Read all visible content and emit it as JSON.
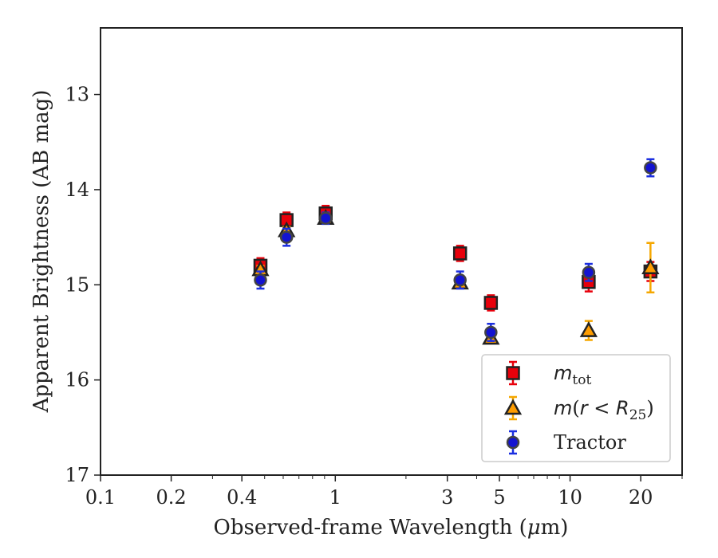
{
  "chart_data": {
    "type": "scatter",
    "xlabel": "Observed-frame Wavelength (μm)",
    "ylabel": "Apparent Brightness (AB mag)",
    "x_scale": "log",
    "xlim": [
      0.1,
      30
    ],
    "ylim": [
      17,
      12.3
    ],
    "y_inverted": true,
    "x_ticks": [
      0.1,
      0.2,
      0.4,
      1,
      3,
      5,
      10,
      20
    ],
    "x_tick_labels": [
      "0.1",
      "0.2",
      "0.4",
      "1",
      "3",
      "5",
      "10",
      "20"
    ],
    "y_ticks": [
      13,
      14,
      15,
      16,
      17
    ],
    "y_tick_labels": [
      "13",
      "14",
      "15",
      "16",
      "17"
    ],
    "grid": false,
    "legend_position": "bottom-right",
    "series": [
      {
        "name": "m_tot",
        "legend_label": "m_tot",
        "marker": "square",
        "color": "#e8000b",
        "errcolor": "#e8000b",
        "points": [
          {
            "x": 0.48,
            "y": 14.8,
            "err": 0.08
          },
          {
            "x": 0.62,
            "y": 14.32,
            "err": 0.08
          },
          {
            "x": 0.91,
            "y": 14.25,
            "err": 0.08
          },
          {
            "x": 3.4,
            "y": 14.67,
            "err": 0.08
          },
          {
            "x": 4.6,
            "y": 15.19,
            "err": 0.08
          },
          {
            "x": 12.0,
            "y": 14.97,
            "err": 0.1
          },
          {
            "x": 22.0,
            "y": 14.86,
            "err": 0.1
          }
        ]
      },
      {
        "name": "m(r<R25)",
        "legend_label": "m(r<R25)",
        "marker": "triangle",
        "color": "#ff9d00",
        "errcolor": "#f5a700",
        "points": [
          {
            "x": 0.48,
            "y": 14.84,
            "err": 0.04
          },
          {
            "x": 0.62,
            "y": 14.43,
            "err": 0.04
          },
          {
            "x": 0.91,
            "y": 14.3,
            "err": 0.04
          },
          {
            "x": 3.4,
            "y": 14.98,
            "err": 0.04
          },
          {
            "x": 4.6,
            "y": 15.56,
            "err": 0.05
          },
          {
            "x": 12.0,
            "y": 15.48,
            "err": 0.1
          },
          {
            "x": 22.0,
            "y": 14.82,
            "err": 0.26
          }
        ]
      },
      {
        "name": "Tractor",
        "legend_label": "Tractor",
        "marker": "circle",
        "color": "#1313d0",
        "errcolor": "#1a2ee0",
        "points": [
          {
            "x": 0.48,
            "y": 14.95,
            "err": 0.09
          },
          {
            "x": 0.62,
            "y": 14.5,
            "err": 0.09
          },
          {
            "x": 0.91,
            "y": 14.3,
            "err": 0.06
          },
          {
            "x": 3.4,
            "y": 14.95,
            "err": 0.09
          },
          {
            "x": 4.6,
            "y": 15.5,
            "err": 0.09
          },
          {
            "x": 12.0,
            "y": 14.87,
            "err": 0.09
          },
          {
            "x": 22.0,
            "y": 13.77,
            "err": 0.09
          }
        ]
      }
    ]
  }
}
